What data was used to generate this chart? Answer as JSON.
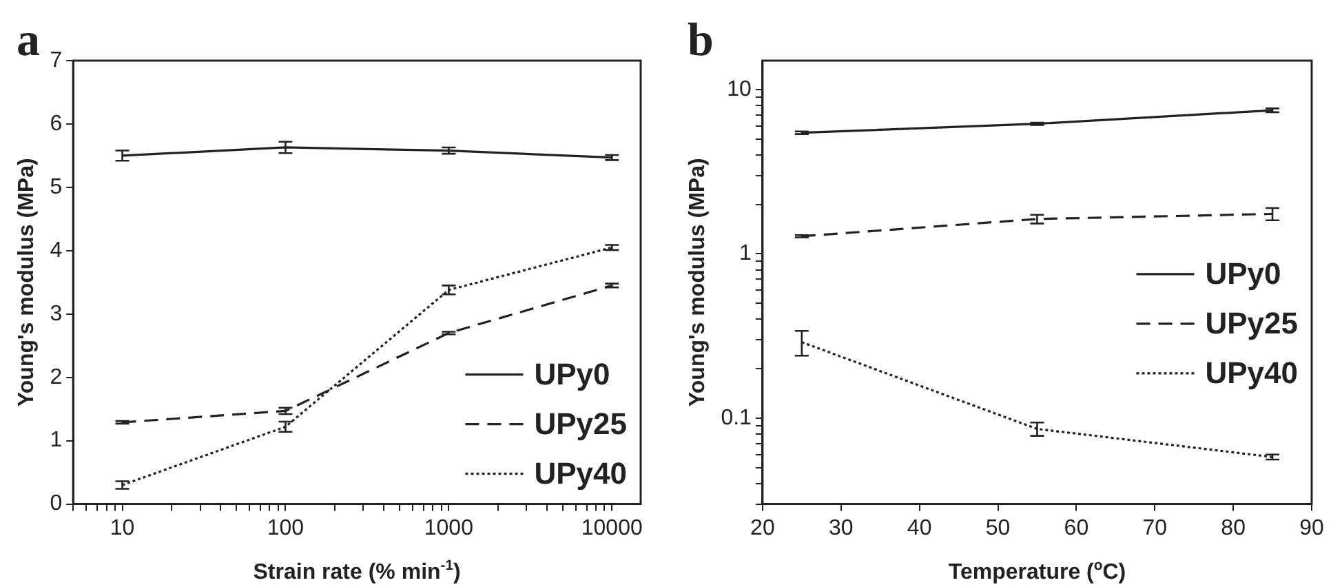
{
  "chart_data": [
    {
      "type": "line",
      "xlabel": "Strain rate (% min$^{-1}$)",
      "ylabel": "Young's modulus (MPa)",
      "annotations": [
        "a"
      ],
      "log": "x",
      "x": [
        10,
        100,
        1000,
        10000
      ],
      "xlim": [
        5,
        15000
      ],
      "xticks": [
        {
          "value": 5,
          "label": null
        },
        {
          "value": 6,
          "label": null
        },
        {
          "value": 7,
          "label": null
        },
        {
          "value": 8,
          "label": null
        },
        {
          "value": 9,
          "label": null
        },
        10,
        {
          "value": 20,
          "label": null
        },
        {
          "value": 30,
          "label": null
        },
        {
          "value": 40,
          "label": null
        },
        {
          "value": 50,
          "label": null
        },
        {
          "value": 60,
          "label": null
        },
        {
          "value": 70,
          "label": null
        },
        {
          "value": 80,
          "label": null
        },
        {
          "value": 90,
          "label": null
        },
        100,
        {
          "value": 200,
          "label": null
        },
        {
          "value": 300,
          "label": null
        },
        {
          "value": 400,
          "label": null
        },
        {
          "value": 500,
          "label": null
        },
        {
          "value": 600,
          "label": null
        },
        {
          "value": 700,
          "label": null
        },
        {
          "value": 800,
          "label": null
        },
        {
          "value": 900,
          "label": null
        },
        1000,
        {
          "value": 2000,
          "label": null
        },
        {
          "value": 3000,
          "label": null
        },
        {
          "value": 4000,
          "label": null
        },
        {
          "value": 5000,
          "label": null
        },
        {
          "value": 6000,
          "label": null
        },
        {
          "value": 7000,
          "label": null
        },
        {
          "value": 8000,
          "label": null
        },
        {
          "value": 9000,
          "label": null
        },
        10000
      ],
      "ylim": [
        0,
        7
      ],
      "yticks": [
        0,
        1,
        2,
        3,
        4,
        5,
        6,
        7
      ],
      "grid": false,
      "legend": "bottom right",
      "series": [
        {
          "name": "UPy0",
          "color": "#222222",
          "line_style": "solid",
          "values": [
            5.5,
            5.63,
            5.58,
            5.47
          ],
          "errors": [
            0.08,
            0.09,
            0.05,
            0.04
          ]
        },
        {
          "name": "UPy25",
          "color": "#222222",
          "line_style": "dashed",
          "values": [
            1.29,
            1.47,
            2.7,
            3.45
          ],
          "errors": [
            0.02,
            0.05,
            0.02,
            0.03
          ]
        },
        {
          "name": "UPy40",
          "color": "#222222",
          "line_style": "dotted",
          "values": [
            0.3,
            1.22,
            3.38,
            4.05
          ],
          "errors": [
            0.06,
            0.08,
            0.07,
            0.04
          ]
        }
      ]
    },
    {
      "type": "line",
      "xlabel": "Temperature ($^{o}$C)",
      "ylabel": "Young's modulus (MPa)",
      "annotations": [
        "b"
      ],
      "log": "y",
      "x": [
        25,
        55,
        85
      ],
      "xlim": [
        20,
        90
      ],
      "xticks": [
        20,
        30,
        40,
        50,
        60,
        70,
        80,
        90
      ],
      "ylim": [
        0.03,
        15
      ],
      "yticks": [
        {
          "value": 0.03,
          "label": null
        },
        {
          "value": 0.04,
          "label": null
        },
        {
          "value": 0.05,
          "label": null
        },
        {
          "value": 0.06,
          "label": null
        },
        {
          "value": 0.07,
          "label": null
        },
        {
          "value": 0.08,
          "label": null
        },
        {
          "value": 0.09,
          "label": null
        },
        0.1,
        {
          "value": 0.2,
          "label": null
        },
        {
          "value": 0.3,
          "label": null
        },
        {
          "value": 0.4,
          "label": null
        },
        {
          "value": 0.5,
          "label": null
        },
        {
          "value": 0.6,
          "label": null
        },
        {
          "value": 0.7,
          "label": null
        },
        {
          "value": 0.8,
          "label": null
        },
        {
          "value": 0.9,
          "label": null
        },
        1,
        {
          "value": 2,
          "label": null
        },
        {
          "value": 3,
          "label": null
        },
        {
          "value": 4,
          "label": null
        },
        {
          "value": 5,
          "label": null
        },
        {
          "value": 6,
          "label": null
        },
        {
          "value": 7,
          "label": null
        },
        {
          "value": 8,
          "label": null
        },
        {
          "value": 9,
          "label": null
        },
        10
      ],
      "grid": false,
      "legend": "right",
      "series": [
        {
          "name": "UPy0",
          "color": "#222222",
          "line_style": "solid",
          "values": [
            5.46,
            6.19,
            7.48
          ],
          "errors": [
            0.1,
            0.1,
            0.2
          ]
        },
        {
          "name": "UPy25",
          "color": "#222222",
          "line_style": "dashed",
          "values": [
            1.28,
            1.63,
            1.75
          ],
          "errors": [
            0.02,
            0.1,
            0.15
          ]
        },
        {
          "name": "UPy40",
          "color": "#222222",
          "line_style": "dotted",
          "values": [
            0.29,
            0.086,
            0.058
          ],
          "errors": [
            0.05,
            0.008,
            0.002
          ]
        }
      ]
    }
  ]
}
